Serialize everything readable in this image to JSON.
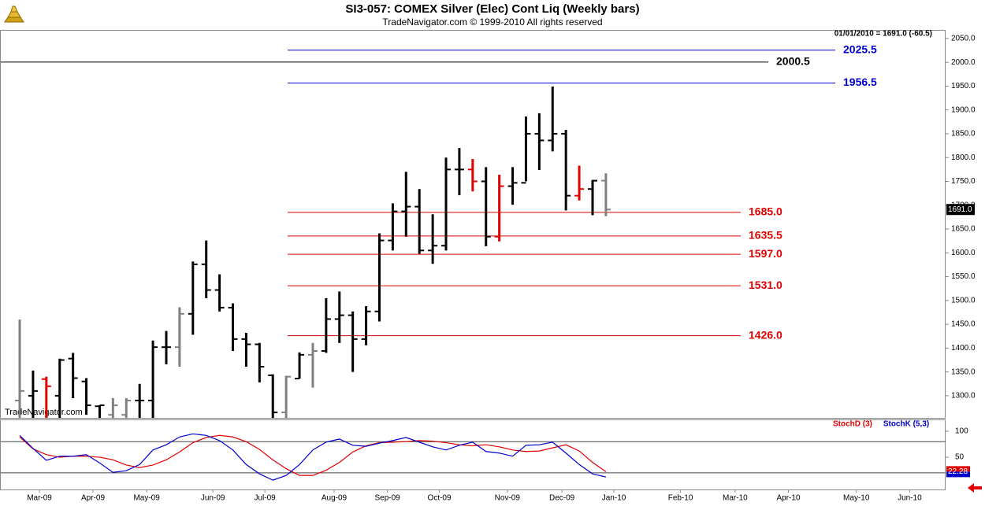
{
  "chart_data": [
    {
      "type": "ohlc",
      "title": "SI3-057:  COMEX Silver (Elec) Cont Liq  (Weekly bars)",
      "subtitle": "TradeNavigator.com © 1999-2010 All rights reserved",
      "info": "01/01/2010 = 1691.0 (-60.5)",
      "watermark": "TradeNavigator.com",
      "open": [
        1290,
        1300,
        1335,
        1300,
        1378,
        1330,
        1278,
        1260,
        1260,
        1290,
        1290,
        1402,
        1402,
        1472,
        1576,
        1522,
        1485,
        1419,
        1408,
        1343,
        1265,
        1336,
        1386,
        1394,
        1461,
        1469,
        1419,
        1477,
        1626,
        1687,
        1697,
        1605,
        1615,
        1775,
        1775,
        1750,
        1634,
        1740,
        1747,
        1850,
        1836,
        1850,
        1720,
        1734,
        1751.5
      ],
      "high": [
        1460,
        1353,
        1340,
        1378,
        1390,
        1337,
        1280,
        1295,
        1295,
        1325,
        1416,
        1436,
        1486,
        1582,
        1626,
        1555,
        1494,
        1432,
        1411,
        1345,
        1342,
        1391,
        1411,
        1505,
        1519,
        1477,
        1488,
        1641,
        1704,
        1770,
        1734,
        1681,
        1800,
        1820,
        1797,
        1780,
        1764,
        1780,
        1886,
        1893,
        1949,
        1858,
        1783,
        1753,
        1767
      ],
      "low": [
        1240,
        1240,
        1240,
        1240,
        1295,
        1260,
        1240,
        1240,
        1240,
        1240,
        1240,
        1366,
        1361,
        1428,
        1505,
        1477,
        1394,
        1361,
        1328,
        1240,
        1240,
        1336,
        1317,
        1390,
        1411,
        1350,
        1406,
        1456,
        1605,
        1634,
        1598,
        1577,
        1605,
        1721,
        1729,
        1614,
        1624,
        1701,
        1750,
        1774,
        1813,
        1689,
        1710,
        1679,
        1677
      ],
      "close": [
        1310,
        1310,
        1320,
        1375,
        1337,
        1280,
        1280,
        1280,
        1290,
        1290,
        1402,
        1402,
        1472,
        1576,
        1522,
        1485,
        1419,
        1408,
        1361,
        1265,
        1340,
        1386,
        1394,
        1461,
        1469,
        1419,
        1477,
        1626,
        1687,
        1697,
        1605,
        1615,
        1775,
        1775,
        1750,
        1634,
        1740,
        1747,
        1850,
        1836,
        1850,
        1720,
        1734,
        1751.5,
        1691
      ],
      "colors": [
        "#808080",
        "#000000",
        "#e00000",
        "#000000",
        "#000000",
        "#000000",
        "#000000",
        "#808080",
        "#808080",
        "#000000",
        "#000000",
        "#000000",
        "#808080",
        "#000000",
        "#000000",
        "#000000",
        "#000000",
        "#000000",
        "#000000",
        "#000000",
        "#808080",
        "#000000",
        "#808080",
        "#000000",
        "#000000",
        "#000000",
        "#000000",
        "#000000",
        "#000000",
        "#000000",
        "#000000",
        "#000000",
        "#000000",
        "#000000",
        "#e00000",
        "#000000",
        "#e00000",
        "#000000",
        "#000000",
        "#000000",
        "#000000",
        "#000000",
        "#e00000",
        "#000000",
        "#808080"
      ],
      "levels": [
        {
          "value": 2025.5,
          "color": "#0000cc"
        },
        {
          "value": 2000.5,
          "color": "#000000"
        },
        {
          "value": 1956.5,
          "color": "#0000cc"
        },
        {
          "value": {
            "value": 1685,
            "label": "1685.0"
          },
          "color": "#e00000"
        },
        {
          "value": 1635.5,
          "color": "#e00000"
        },
        {
          "value": {
            "value": 1597,
            "label": "1597.0"
          },
          "color": "#e00000"
        },
        {
          "value": {
            "value": 1531,
            "label": "1531.0"
          },
          "color": "#e00000"
        },
        {
          "value": {
            "value": 1426,
            "label": "1426.0"
          },
          "color": "#e00000"
        }
      ],
      "last_price": {
        "value": 1691,
        "label": "1691.0"
      },
      "xlim": [
        -1.48,
        69.5
      ],
      "ylim": [
        1253.6,
        2068
      ],
      "yticks": [
        {
          "value": 1300,
          "label": "1300.0"
        },
        {
          "value": 1350,
          "label": "1350.0"
        },
        {
          "value": 1400,
          "label": "1400.0"
        },
        {
          "value": 1450,
          "label": "1450.0"
        },
        {
          "value": 1500,
          "label": "1500.0"
        },
        {
          "value": 1550,
          "label": "1550.0"
        },
        {
          "value": 1600,
          "label": "1600.0"
        },
        {
          "value": 1650,
          "label": "1650.0"
        },
        {
          "value": 1700,
          "label": "1700.0"
        },
        {
          "value": 1750,
          "label": "1750.0"
        },
        {
          "value": 1800,
          "label": "1800.0"
        },
        {
          "value": 1850,
          "label": "1850.0"
        },
        {
          "value": 1900,
          "label": "1900.0"
        },
        {
          "value": 1950,
          "label": "1950.0"
        },
        {
          "value": 2000,
          "label": "2000.0"
        },
        {
          "value": 2050,
          "label": "2050.0"
        }
      ]
    },
    {
      "type": "line",
      "series": [
        {
          "name": "StochD (3)",
          "color": "#e00000",
          "values": [
            89,
            66,
            55,
            50,
            52,
            52,
            50,
            45,
            35,
            30,
            35,
            45,
            60,
            78,
            88,
            92,
            89,
            80,
            65,
            45,
            28,
            15,
            15,
            25,
            40,
            60,
            72,
            78,
            79,
            80,
            82,
            81,
            78,
            74,
            72,
            74,
            70,
            64,
            61,
            62,
            68,
            74,
            62,
            40,
            22.28
          ]
        },
        {
          "name": "StochK (5,3)",
          "color": "#0000cc",
          "values": [
            92,
            67,
            44,
            52,
            52,
            55,
            39,
            21,
            24,
            36,
            64,
            74,
            89,
            95,
            92,
            82,
            64,
            36,
            18,
            6,
            15,
            36,
            64,
            79,
            85,
            73,
            71,
            77,
            82,
            88,
            79,
            70,
            64,
            73,
            79,
            61,
            58,
            52,
            73,
            74,
            79,
            58,
            36,
            18,
            12
          ]
        }
      ],
      "levels": [
        80,
        20
      ],
      "xlim": [
        -1.48,
        69.5
      ],
      "ylim": [
        -12,
        122.7
      ],
      "yticks": [
        100,
        50
      ],
      "xticks": [
        {
          "value": 1.48,
          "label": "Mar-09"
        },
        {
          "value": 5.5,
          "label": "Apr-09"
        },
        {
          "value": 9.53,
          "label": "May-09"
        },
        {
          "value": 14.5,
          "label": "Jun-09"
        },
        {
          "value": 18.4,
          "label": "Jul-09"
        },
        {
          "value": 23.6,
          "label": "Aug-09"
        },
        {
          "value": 27.6,
          "label": "Sep-09"
        },
        {
          "value": 31.5,
          "label": "Oct-09"
        },
        {
          "value": 36.6,
          "label": "Nov-09"
        },
        {
          "value": 40.7,
          "label": "Dec-09"
        },
        {
          "value": 44.6,
          "label": "Jan-10"
        },
        {
          "value": 49.6,
          "label": "Feb-10"
        },
        {
          "value": 53.7,
          "label": "Mar-10"
        },
        {
          "value": 57.7,
          "label": "Apr-10"
        },
        {
          "value": 62.8,
          "label": "May-10"
        },
        {
          "value": 66.8,
          "label": "Jun-10"
        }
      ]
    }
  ]
}
